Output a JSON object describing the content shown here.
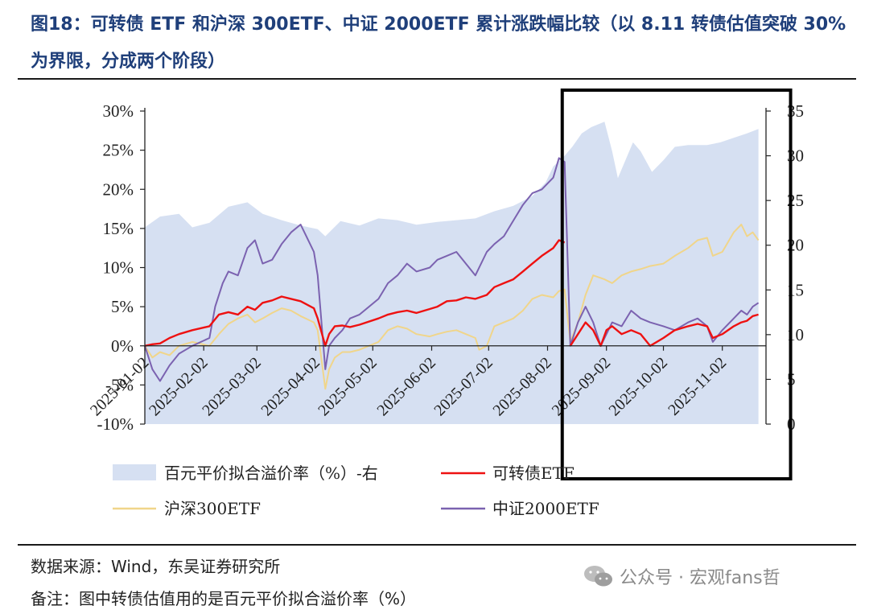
{
  "header": {
    "title": "图18：可转债 ETF 和沪深 300ETF、中证 2000ETF 累计涨跌幅比较（以 8.11 转债估值突破 30%为界限，分成两个阶段）"
  },
  "footer": {
    "source": "数据来源：Wind，东吴证券研究所",
    "note": "备注：图中转债估值用的是百元平价拟合溢价率（%）",
    "watermark": "公众号 · 宏观fans哲"
  },
  "colors": {
    "premium_area": "#d6e0f2",
    "cb_etf": "#ee1111",
    "hs300": "#f0d58a",
    "zz2000": "#7b62b0",
    "highlight_box": "#000000"
  },
  "chart_data": {
    "type": "line",
    "y_left_ticks": [
      "30%",
      "25%",
      "20%",
      "15%",
      "10%",
      "5%",
      "0%",
      "-5%",
      "-10%"
    ],
    "y_left_range": [
      -10,
      30
    ],
    "y_right_ticks": [
      "35",
      "30",
      "25",
      "20",
      "15",
      "10",
      "5",
      "0"
    ],
    "y_right_range": [
      0,
      35
    ],
    "x_ticks": [
      "2025-01-02",
      "2025-02-02",
      "2025-03-02",
      "2025-04-02",
      "2025-05-02",
      "2025-06-02",
      "2025-07-02",
      "2025-08-02",
      "2025-09-02",
      "2025-10-02",
      "2025-11-02"
    ],
    "highlight_range": [
      "2025-08-11",
      "2025-11-21"
    ],
    "legend": [
      "百元平价拟合溢价率（%）-右",
      "可转债ETF",
      "沪深300ETF",
      "中证2000ETF"
    ],
    "series": [
      {
        "name": "百元平价拟合溢价率（%）-右",
        "kind": "area",
        "axis": "right",
        "points": [
          [
            "2025-01-02",
            22.0
          ],
          [
            "2025-01-10",
            23.2
          ],
          [
            "2025-01-20",
            23.5
          ],
          [
            "2025-01-27",
            22.0
          ],
          [
            "2025-02-05",
            22.5
          ],
          [
            "2025-02-15",
            24.3
          ],
          [
            "2025-02-25",
            24.8
          ],
          [
            "2025-03-05",
            23.5
          ],
          [
            "2025-03-15",
            22.8
          ],
          [
            "2025-03-25",
            22.2
          ],
          [
            "2025-04-03",
            21.8
          ],
          [
            "2025-04-07",
            21.0
          ],
          [
            "2025-04-15",
            22.7
          ],
          [
            "2025-04-25",
            22.2
          ],
          [
            "2025-05-05",
            23.0
          ],
          [
            "2025-05-15",
            22.8
          ],
          [
            "2025-05-25",
            22.3
          ],
          [
            "2025-06-05",
            22.6
          ],
          [
            "2025-06-15",
            22.8
          ],
          [
            "2025-06-25",
            23.0
          ],
          [
            "2025-07-05",
            23.8
          ],
          [
            "2025-07-15",
            24.4
          ],
          [
            "2025-07-25",
            25.5
          ],
          [
            "2025-08-01",
            27.0
          ],
          [
            "2025-08-05",
            28.8
          ],
          [
            "2025-08-11",
            30.0
          ],
          [
            "2025-08-15",
            31.0
          ],
          [
            "2025-08-20",
            32.5
          ],
          [
            "2025-08-25",
            33.2
          ],
          [
            "2025-09-01",
            33.8
          ],
          [
            "2025-09-05",
            30.5
          ],
          [
            "2025-09-08",
            27.5
          ],
          [
            "2025-09-12",
            29.5
          ],
          [
            "2025-09-16",
            31.5
          ],
          [
            "2025-09-20",
            30.5
          ],
          [
            "2025-09-26",
            28.2
          ],
          [
            "2025-10-02",
            29.5
          ],
          [
            "2025-10-08",
            31.0
          ],
          [
            "2025-10-15",
            31.2
          ],
          [
            "2025-10-25",
            31.2
          ],
          [
            "2025-11-01",
            31.5
          ],
          [
            "2025-11-08",
            32.0
          ],
          [
            "2025-11-15",
            32.5
          ],
          [
            "2025-11-21",
            33.0
          ]
        ]
      },
      {
        "name": "可转债ETF",
        "axis": "left",
        "points": [
          [
            "2025-01-02",
            0.0
          ],
          [
            "2025-01-06",
            0.2
          ],
          [
            "2025-01-10",
            0.3
          ],
          [
            "2025-01-15",
            1.0
          ],
          [
            "2025-01-20",
            1.5
          ],
          [
            "2025-01-27",
            2.0
          ],
          [
            "2025-02-05",
            2.5
          ],
          [
            "2025-02-10",
            4.0
          ],
          [
            "2025-02-15",
            4.3
          ],
          [
            "2025-02-20",
            4.0
          ],
          [
            "2025-02-25",
            5.0
          ],
          [
            "2025-03-01",
            4.6
          ],
          [
            "2025-03-05",
            5.5
          ],
          [
            "2025-03-10",
            5.8
          ],
          [
            "2025-03-15",
            6.3
          ],
          [
            "2025-03-20",
            6.0
          ],
          [
            "2025-03-25",
            5.7
          ],
          [
            "2025-04-01",
            4.8
          ],
          [
            "2025-04-03",
            3.5
          ],
          [
            "2025-04-07",
            0.0
          ],
          [
            "2025-04-09",
            1.5
          ],
          [
            "2025-04-12",
            2.5
          ],
          [
            "2025-04-16",
            2.6
          ],
          [
            "2025-04-20",
            2.4
          ],
          [
            "2025-04-25",
            2.7
          ],
          [
            "2025-05-05",
            3.5
          ],
          [
            "2025-05-10",
            4.0
          ],
          [
            "2025-05-15",
            4.3
          ],
          [
            "2025-05-20",
            4.5
          ],
          [
            "2025-05-25",
            4.2
          ],
          [
            "2025-06-01",
            4.7
          ],
          [
            "2025-06-05",
            5.0
          ],
          [
            "2025-06-10",
            5.7
          ],
          [
            "2025-06-15",
            5.8
          ],
          [
            "2025-06-20",
            6.2
          ],
          [
            "2025-06-25",
            6.0
          ],
          [
            "2025-07-01",
            6.5
          ],
          [
            "2025-07-05",
            7.5
          ],
          [
            "2025-07-10",
            8.0
          ],
          [
            "2025-07-15",
            8.5
          ],
          [
            "2025-07-20",
            9.5
          ],
          [
            "2025-07-25",
            10.5
          ],
          [
            "2025-07-30",
            11.5
          ],
          [
            "2025-08-05",
            12.5
          ],
          [
            "2025-08-08",
            13.5
          ],
          [
            "2025-08-11",
            13.2
          ]
        ]
      },
      {
        "name": "沪深300ETF",
        "axis": "left",
        "points": [
          [
            "2025-01-02",
            0.0
          ],
          [
            "2025-01-06",
            -1.5
          ],
          [
            "2025-01-10",
            -0.8
          ],
          [
            "2025-01-15",
            -1.2
          ],
          [
            "2025-01-20",
            0.0
          ],
          [
            "2025-01-27",
            0.5
          ],
          [
            "2025-02-05",
            0.0
          ],
          [
            "2025-02-10",
            1.5
          ],
          [
            "2025-02-15",
            2.8
          ],
          [
            "2025-02-20",
            3.5
          ],
          [
            "2025-02-25",
            4.0
          ],
          [
            "2025-03-01",
            3.0
          ],
          [
            "2025-03-05",
            3.5
          ],
          [
            "2025-03-10",
            4.2
          ],
          [
            "2025-03-15",
            4.8
          ],
          [
            "2025-03-20",
            4.5
          ],
          [
            "2025-03-25",
            3.8
          ],
          [
            "2025-04-01",
            3.0
          ],
          [
            "2025-04-03",
            2.0
          ],
          [
            "2025-04-07",
            -5.5
          ],
          [
            "2025-04-09",
            -3.0
          ],
          [
            "2025-04-12",
            -1.5
          ],
          [
            "2025-04-16",
            -0.8
          ],
          [
            "2025-04-20",
            -0.8
          ],
          [
            "2025-04-25",
            -0.5
          ],
          [
            "2025-05-05",
            0.5
          ],
          [
            "2025-05-10",
            2.0
          ],
          [
            "2025-05-15",
            2.5
          ],
          [
            "2025-05-20",
            2.2
          ],
          [
            "2025-05-25",
            1.5
          ],
          [
            "2025-06-01",
            1.2
          ],
          [
            "2025-06-05",
            1.5
          ],
          [
            "2025-06-10",
            1.8
          ],
          [
            "2025-06-15",
            2.0
          ],
          [
            "2025-06-20",
            1.5
          ],
          [
            "2025-06-25",
            1.0
          ],
          [
            "2025-06-27",
            -0.5
          ],
          [
            "2025-07-01",
            0.0
          ],
          [
            "2025-07-05",
            2.5
          ],
          [
            "2025-07-10",
            3.0
          ],
          [
            "2025-07-15",
            3.5
          ],
          [
            "2025-07-20",
            4.5
          ],
          [
            "2025-07-25",
            6.0
          ],
          [
            "2025-07-30",
            6.5
          ],
          [
            "2025-08-05",
            6.2
          ],
          [
            "2025-08-08",
            7.0
          ],
          [
            "2025-08-11",
            7.2
          ],
          [
            "2025-08-14",
            0.5
          ],
          [
            "2025-08-18",
            3.0
          ],
          [
            "2025-08-22",
            6.5
          ],
          [
            "2025-08-26",
            9.0
          ],
          [
            "2025-09-01",
            8.5
          ],
          [
            "2025-09-05",
            8.0
          ],
          [
            "2025-09-10",
            9.0
          ],
          [
            "2025-09-15",
            9.5
          ],
          [
            "2025-09-20",
            9.8
          ],
          [
            "2025-09-25",
            10.2
          ],
          [
            "2025-10-02",
            10.5
          ],
          [
            "2025-10-08",
            11.5
          ],
          [
            "2025-10-15",
            12.5
          ],
          [
            "2025-10-20",
            13.5
          ],
          [
            "2025-10-25",
            13.8
          ],
          [
            "2025-10-28",
            11.5
          ],
          [
            "2025-11-02",
            12.0
          ],
          [
            "2025-11-08",
            14.5
          ],
          [
            "2025-11-12",
            15.5
          ],
          [
            "2025-11-15",
            14.0
          ],
          [
            "2025-11-18",
            14.5
          ],
          [
            "2025-11-21",
            13.5
          ]
        ]
      },
      {
        "name": "中证2000ETF",
        "axis": "left",
        "points": [
          [
            "2025-01-02",
            0.0
          ],
          [
            "2025-01-06",
            -3.0
          ],
          [
            "2025-01-10",
            -4.5
          ],
          [
            "2025-01-15",
            -2.5
          ],
          [
            "2025-01-20",
            -1.0
          ],
          [
            "2025-01-27",
            0.0
          ],
          [
            "2025-02-05",
            1.0
          ],
          [
            "2025-02-08",
            5.0
          ],
          [
            "2025-02-12",
            8.0
          ],
          [
            "2025-02-15",
            9.5
          ],
          [
            "2025-02-20",
            9.0
          ],
          [
            "2025-02-25",
            12.5
          ],
          [
            "2025-03-01",
            13.5
          ],
          [
            "2025-03-05",
            10.5
          ],
          [
            "2025-03-10",
            11.0
          ],
          [
            "2025-03-15",
            13.0
          ],
          [
            "2025-03-20",
            14.5
          ],
          [
            "2025-03-25",
            15.5
          ],
          [
            "2025-03-28",
            14.0
          ],
          [
            "2025-04-01",
            12.0
          ],
          [
            "2025-04-03",
            9.0
          ],
          [
            "2025-04-07",
            -3.0
          ],
          [
            "2025-04-09",
            0.0
          ],
          [
            "2025-04-12",
            1.0
          ],
          [
            "2025-04-16",
            2.0
          ],
          [
            "2025-04-20",
            3.5
          ],
          [
            "2025-04-25",
            4.0
          ],
          [
            "2025-05-05",
            6.0
          ],
          [
            "2025-05-10",
            8.0
          ],
          [
            "2025-05-15",
            9.0
          ],
          [
            "2025-05-20",
            10.5
          ],
          [
            "2025-05-25",
            9.5
          ],
          [
            "2025-06-01",
            10.0
          ],
          [
            "2025-06-05",
            11.0
          ],
          [
            "2025-06-10",
            11.5
          ],
          [
            "2025-06-15",
            12.0
          ],
          [
            "2025-06-20",
            10.5
          ],
          [
            "2025-06-25",
            9.0
          ],
          [
            "2025-07-01",
            12.0
          ],
          [
            "2025-07-05",
            13.0
          ],
          [
            "2025-07-10",
            14.0
          ],
          [
            "2025-07-15",
            16.0
          ],
          [
            "2025-07-20",
            18.0
          ],
          [
            "2025-07-25",
            19.5
          ],
          [
            "2025-07-30",
            20.0
          ],
          [
            "2025-08-05",
            21.5
          ],
          [
            "2025-08-08",
            24.0
          ],
          [
            "2025-08-11",
            23.5
          ],
          [
            "2025-08-14",
            0.0
          ],
          [
            "2025-08-18",
            3.0
          ],
          [
            "2025-08-22",
            5.0
          ],
          [
            "2025-08-26",
            3.0
          ],
          [
            "2025-08-30",
            0.0
          ],
          [
            "2025-09-02",
            1.5
          ],
          [
            "2025-09-05",
            3.0
          ],
          [
            "2025-09-10",
            2.5
          ],
          [
            "2025-09-15",
            4.5
          ],
          [
            "2025-09-20",
            3.5
          ],
          [
            "2025-09-25",
            3.0
          ],
          [
            "2025-10-02",
            2.5
          ],
          [
            "2025-10-08",
            2.0
          ],
          [
            "2025-10-15",
            3.0
          ],
          [
            "2025-10-20",
            3.5
          ],
          [
            "2025-10-25",
            2.5
          ],
          [
            "2025-10-28",
            0.5
          ],
          [
            "2025-11-02",
            2.0
          ],
          [
            "2025-11-08",
            3.5
          ],
          [
            "2025-11-12",
            4.5
          ],
          [
            "2025-11-15",
            4.0
          ],
          [
            "2025-11-18",
            5.0
          ],
          [
            "2025-11-21",
            5.5
          ]
        ]
      },
      {
        "name": "可转债ETF",
        "axis": "left",
        "points": [
          [
            "2025-08-14",
            0.0
          ],
          [
            "2025-08-18",
            1.5
          ],
          [
            "2025-08-22",
            3.0
          ],
          [
            "2025-08-26",
            2.0
          ],
          [
            "2025-08-30",
            0.0
          ],
          [
            "2025-09-02",
            2.0
          ],
          [
            "2025-09-05",
            2.5
          ],
          [
            "2025-09-10",
            1.5
          ],
          [
            "2025-09-15",
            2.0
          ],
          [
            "2025-09-20",
            1.5
          ],
          [
            "2025-09-25",
            0.0
          ],
          [
            "2025-10-02",
            1.0
          ],
          [
            "2025-10-08",
            2.0
          ],
          [
            "2025-10-15",
            2.5
          ],
          [
            "2025-10-20",
            2.8
          ],
          [
            "2025-10-25",
            2.5
          ],
          [
            "2025-10-28",
            1.0
          ],
          [
            "2025-11-02",
            1.5
          ],
          [
            "2025-11-08",
            2.5
          ],
          [
            "2025-11-12",
            3.0
          ],
          [
            "2025-11-15",
            3.2
          ],
          [
            "2025-11-18",
            3.8
          ],
          [
            "2025-11-21",
            4.0
          ]
        ]
      }
    ]
  }
}
